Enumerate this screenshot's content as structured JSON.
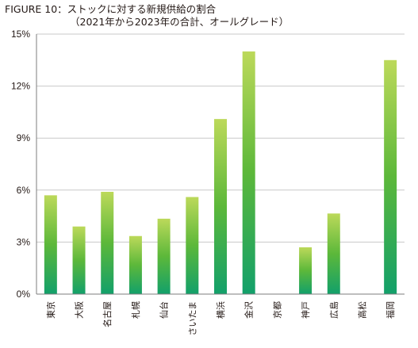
{
  "chart_data": {
    "type": "bar",
    "title": "FIGURE 10：ストックに対する新規供給の割合",
    "subtitle": "（2021年から2023年の合計、オールグレード）",
    "categories": [
      "東京",
      "大阪",
      "名古屋",
      "札幌",
      "仙台",
      "さいたま",
      "横浜",
      "金沢",
      "京都",
      "神戸",
      "広島",
      "高松",
      "福岡"
    ],
    "values": [
      5.7,
      3.9,
      5.9,
      3.35,
      4.35,
      5.6,
      10.1,
      14.0,
      0,
      2.7,
      4.65,
      0,
      13.5
    ],
    "ylim": [
      0,
      15
    ],
    "yticks": [
      0,
      3,
      6,
      9,
      12,
      15
    ],
    "ytick_labels": [
      "0%",
      "3%",
      "6%",
      "9%",
      "12%",
      "15%"
    ],
    "grid": true,
    "colors": {
      "bar_top": "#bcd95a",
      "bar_mid": "#5cb83a",
      "bar_bottom": "#12a06a",
      "grid": "#c9c9c9",
      "axis": "#7d7d7d"
    }
  }
}
